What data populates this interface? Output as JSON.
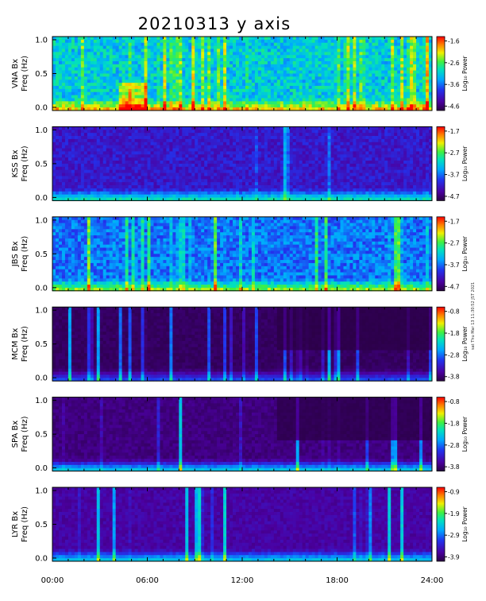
{
  "title": "20210313 y axis",
  "side_note": "sat Thu Mar 13 11:30:52 JST 2021",
  "chart_data": {
    "type": "heatmap",
    "title": "20210313 y axis",
    "xlabel": "",
    "x_ticks": [
      "00:00",
      "06:00",
      "12:00",
      "18:00",
      "24:00"
    ],
    "x_range_hours": [
      0,
      24
    ],
    "y_range": [
      0,
      1.0
    ],
    "y_ticks": [
      "0.0",
      "0.5",
      "1.0"
    ],
    "colorbar_label": "Log₁₀ Power",
    "colormap": [
      "#2a0044",
      "#4b00a0",
      "#2233ee",
      "#00a8ff",
      "#00e0c0",
      "#40f040",
      "#f0f000",
      "#ff8000",
      "#ff0000"
    ],
    "panels": [
      {
        "station": "VNA Bx",
        "ylabel": "Freq (Hz)",
        "cbar_ticks": [
          "-1.6",
          "-2.6",
          "-3.6",
          "-4.6"
        ],
        "cbar_range": [
          -4.8,
          -1.4
        ]
      },
      {
        "station": "KSS Bx",
        "ylabel": "Freq (Hz)",
        "cbar_ticks": [
          "-1.7",
          "-2.7",
          "-3.7",
          "-4.7"
        ],
        "cbar_range": [
          -4.9,
          -1.5
        ]
      },
      {
        "station": "JBS Bx",
        "ylabel": "Freq (Hz)",
        "cbar_ticks": [
          "-1.7",
          "-2.7",
          "-3.7",
          "-4.7"
        ],
        "cbar_range": [
          -4.9,
          -1.5
        ]
      },
      {
        "station": "MCM Bx",
        "ylabel": "Freq (Hz)",
        "cbar_ticks": [
          "-0.8",
          "-1.8",
          "-2.8",
          "-3.8"
        ],
        "cbar_range": [
          -4.0,
          -0.6
        ]
      },
      {
        "station": "SPA Bx",
        "ylabel": "Freq (Hz)",
        "cbar_ticks": [
          "-0.8",
          "-1.8",
          "-2.8",
          "-3.8"
        ],
        "cbar_range": [
          -4.0,
          -0.6
        ]
      },
      {
        "station": "LYR Bx",
        "ylabel": "Freq (Hz)",
        "cbar_ticks": [
          "-0.9",
          "-1.9",
          "-2.9",
          "-3.9"
        ],
        "cbar_range": [
          -4.1,
          -0.7
        ]
      }
    ]
  }
}
